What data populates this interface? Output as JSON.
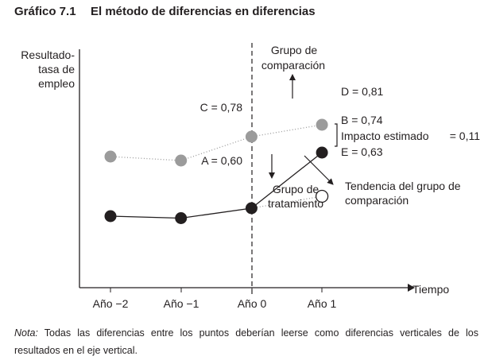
{
  "title": {
    "number": "Gráfico 7.1",
    "text": "El método de diferencias en diferencias"
  },
  "chart_data": {
    "type": "line",
    "categories": [
      "Año −2",
      "Año −1",
      "Año 0",
      "Año 1"
    ],
    "xlabel": "Tiempo",
    "ylabel": [
      "Resultado-",
      "tasa de",
      "empleo"
    ],
    "ylim": [
      0.4,
      1.0
    ],
    "series": [
      {
        "key": "comparison",
        "values": [
          0.73,
          0.72,
          0.78,
          0.81
        ],
        "color": "#9b9b9b",
        "style": "dotted"
      },
      {
        "key": "treatment",
        "values": [
          0.58,
          0.575,
          0.6,
          0.74
        ],
        "color": "#231f20",
        "style": "solid"
      },
      {
        "key": "comparison-trend",
        "x": [
          "Año 0",
          "Año 1"
        ],
        "values": [
          0.6,
          0.63
        ],
        "color": "#9b9b9b",
        "style": "dotted",
        "marker": "hollow-end"
      }
    ],
    "vline_at": "Año 0",
    "point_labels": {
      "A": "A = 0,60",
      "B": "B = 0,74",
      "C": "C = 0,78",
      "D": "D = 0,81",
      "E": "E = 0,63"
    },
    "annotations": {
      "comparison_group": [
        "Grupo de",
        "comparación"
      ],
      "treatment_group": [
        "Grupo de",
        "tratamiento"
      ],
      "impact": "Impacto estimado",
      "impact_value": "= 0,11",
      "trend": [
        "Tendencia del grupo de",
        "comparación"
      ]
    }
  },
  "note": {
    "label": "Nota:",
    "text": "Todas las diferencias entre los puntos deberían leerse como diferencias verticales de los resultados en el eje vertical."
  },
  "colors": {
    "text": "#231f20",
    "dark": "#231f20",
    "grey": "#9b9b9b"
  }
}
